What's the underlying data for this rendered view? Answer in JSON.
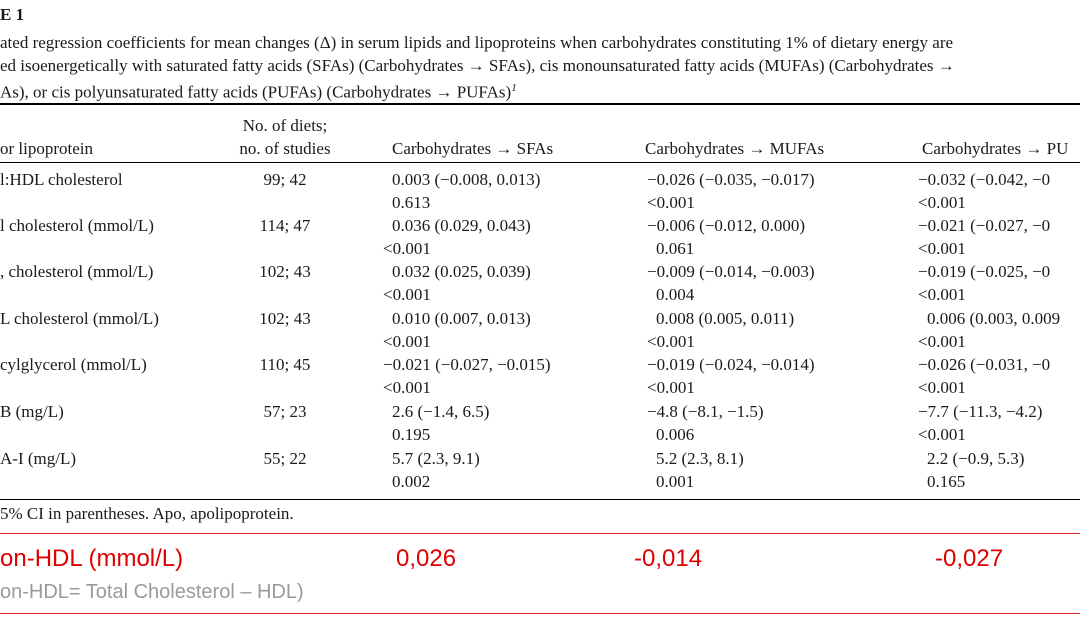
{
  "caption": {
    "label": "E 1",
    "line1": "ated regression coefficients for mean changes (Δ) in serum lipids and lipoproteins when carbohydrates constituting 1% of dietary energy are",
    "line2": "ed isoenergetically with saturated fatty acids (SFAs) (Carbohydrates → SFAs), cis monounsaturated fatty acids (MUFAs) (Carbohydrates →",
    "line3": "As), or cis polyunsaturated fatty acids (PUFAs) (Carbohydrates → PUFAs)",
    "line3_sup": "1"
  },
  "table": {
    "headers": {
      "name": "or lipoprotein",
      "diets_line1": "No. of diets;",
      "diets_line2": "no. of studies",
      "sfa": "Carbohydrates → SFAs",
      "mufa": "Carbohydrates → MUFAs",
      "pufa": "Carbohydrates → PU"
    },
    "rows": [
      {
        "name": "l:HDL cholesterol",
        "diets": "99; 42",
        "sfa_est": "0.003 (−0.008, 0.013)",
        "sfa_p": "0.613",
        "mufa_est": "−0.026 (−0.035, −0.017)",
        "mufa_p": "<0.001",
        "pufa_est": "−0.032 (−0.042, −0",
        "pufa_p": "<0.001"
      },
      {
        "name": "l cholesterol (mmol/L)",
        "diets": "114; 47",
        "sfa_est": "0.036 (0.029, 0.043)",
        "sfa_p": "<0.001",
        "mufa_est": "−0.006 (−0.012, 0.000)",
        "mufa_p": "0.061",
        "pufa_est": "−0.021 (−0.027, −0",
        "pufa_p": "<0.001"
      },
      {
        "name": ", cholesterol (mmol/L)",
        "diets": "102; 43",
        "sfa_est": "0.032 (0.025, 0.039)",
        "sfa_p": "<0.001",
        "mufa_est": "−0.009 (−0.014, −0.003)",
        "mufa_p": "0.004",
        "pufa_est": "−0.019 (−0.025, −0",
        "pufa_p": "<0.001"
      },
      {
        "name": "L cholesterol (mmol/L)",
        "diets": "102; 43",
        "sfa_est": "0.010 (0.007, 0.013)",
        "sfa_p": "<0.001",
        "mufa_est": "0.008 (0.005, 0.011)",
        "mufa_p": "<0.001",
        "pufa_est": "0.006 (0.003, 0.009",
        "pufa_p": "<0.001"
      },
      {
        "name": "cylglycerol (mmol/L)",
        "diets": "110; 45",
        "sfa_est": "−0.021 (−0.027, −0.015)",
        "sfa_p": "<0.001",
        "mufa_est": "−0.019 (−0.024, −0.014)",
        "mufa_p": "<0.001",
        "pufa_est": "−0.026 (−0.031, −0",
        "pufa_p": "<0.001"
      },
      {
        "name": " B (mg/L)",
        "diets": "57; 23",
        "sfa_est": "2.6 (−1.4, 6.5)",
        "sfa_p": "0.195",
        "mufa_est": "−4.8 (−8.1, −1.5)",
        "mufa_p": "0.006",
        "pufa_est": "−7.7 (−11.3, −4.2)",
        "pufa_p": "<0.001"
      },
      {
        "name": " A-I (mg/L)",
        "diets": "55; 22",
        "sfa_est": "5.7 (2.3, 9.1)",
        "sfa_p": "0.002",
        "mufa_est": "5.2 (2.3, 8.1)",
        "mufa_p": "0.001",
        "pufa_est": "2.2 (−0.9, 5.3)",
        "pufa_p": "0.165"
      }
    ]
  },
  "footnote": "5% CI in parentheses. Apo, apolipoprotein.",
  "annotation": {
    "label": "on-HDL (mmol/L)",
    "sfa": "0,026",
    "mufa": "-0,014",
    "pufa": "-0,027",
    "note": "on-HDL= Total Cholesterol – HDL)"
  }
}
